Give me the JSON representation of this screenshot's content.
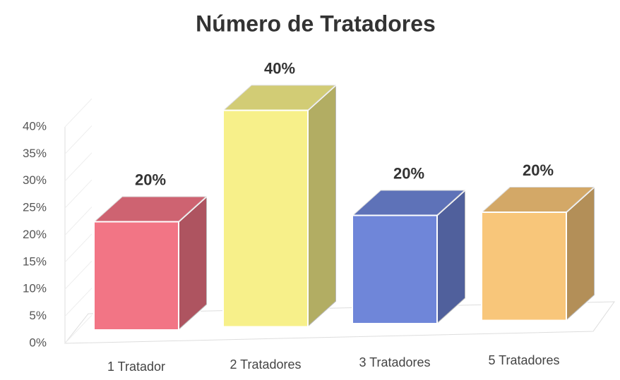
{
  "chart_data": {
    "type": "bar3d",
    "title": "Número de Tratadores",
    "categories": [
      "1 Tratador",
      "2 Tratadores",
      "3 Tratadores",
      "5 Tratadores"
    ],
    "values": [
      20,
      40,
      20,
      20
    ],
    "value_labels": [
      "20%",
      "40%",
      "20%",
      "20%"
    ],
    "colors": [
      "#f27585",
      "#f7f08a",
      "#6f86d9",
      "#f8c67a"
    ],
    "ylim": [
      0,
      40
    ],
    "yticks": [
      {
        "value": 0,
        "label": "0%"
      },
      {
        "value": 5,
        "label": "5%"
      },
      {
        "value": 10,
        "label": "10%"
      },
      {
        "value": 15,
        "label": "15%"
      },
      {
        "value": 20,
        "label": "20%"
      },
      {
        "value": 25,
        "label": "25%"
      },
      {
        "value": 30,
        "label": "30%"
      },
      {
        "value": 35,
        "label": "35%"
      },
      {
        "value": 40,
        "label": "40%"
      }
    ],
    "grid": true
  }
}
